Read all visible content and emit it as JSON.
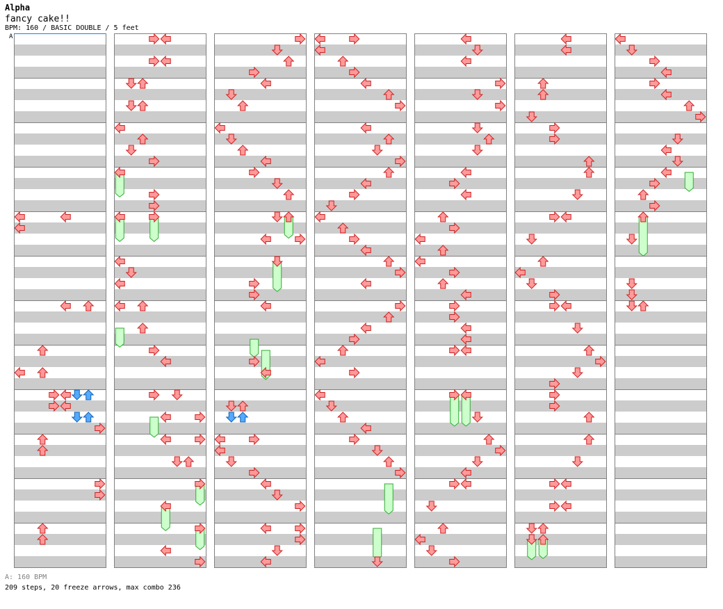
{
  "header": {
    "title": "Alpha",
    "song": "fancy cake!!",
    "info": "BPM: 160 / BASIC DOUBLE / 5 feet",
    "bpm_marker": "A"
  },
  "footer": {
    "bpm_line": "A: 160 BPM",
    "stats": "209 steps, 20 freeze arrows, max combo 236"
  },
  "colors": {
    "note": "#ff9a9a",
    "note_stroke": "#cc2020",
    "note_alt": "#55aaff",
    "note_alt_stroke": "#1060b0",
    "freeze": "#ccffcc",
    "freeze_stroke": "#33aa33",
    "stripe": "#cccccc",
    "border": "#808080"
  },
  "chart_data": {
    "type": "step-chart",
    "style": "double",
    "panels": 7,
    "measures_per_panel": 12,
    "lanes": [
      "P1-left",
      "P1-down",
      "P1-up",
      "P1-right",
      "P2-left",
      "P2-down",
      "P2-up",
      "P2-right"
    ],
    "notes": [
      [
        0,
        4,
        0,
        0
      ],
      [
        0,
        4,
        1,
        0
      ],
      [
        0,
        4,
        0,
        4
      ],
      [
        0,
        6,
        0,
        4
      ],
      [
        0,
        6,
        0,
        6
      ],
      [
        0,
        7,
        2,
        0
      ],
      [
        0,
        7,
        0,
        2
      ],
      [
        0,
        7,
        2,
        2
      ],
      [
        0,
        8,
        0,
        3
      ],
      [
        0,
        8,
        0,
        4
      ],
      [
        0,
        8,
        1,
        3
      ],
      [
        0,
        8,
        1,
        4
      ],
      [
        0,
        8,
        3,
        7
      ],
      [
        0,
        9,
        0,
        2
      ],
      [
        0,
        9,
        1,
        2
      ],
      [
        0,
        10,
        0,
        7
      ],
      [
        0,
        10,
        1,
        7
      ],
      [
        0,
        11,
        0,
        2
      ],
      [
        0,
        11,
        1,
        2
      ],
      [
        1,
        0,
        0,
        3
      ],
      [
        1,
        0,
        0,
        4
      ],
      [
        1,
        0,
        2,
        3
      ],
      [
        1,
        0,
        2,
        4
      ],
      [
        1,
        1,
        0,
        1
      ],
      [
        1,
        1,
        0,
        2
      ],
      [
        1,
        1,
        2,
        1
      ],
      [
        1,
        1,
        2,
        2
      ],
      [
        1,
        2,
        0,
        0
      ],
      [
        1,
        2,
        1,
        2
      ],
      [
        1,
        2,
        2,
        1
      ],
      [
        1,
        2,
        3,
        3
      ],
      [
        1,
        3,
        0,
        0
      ],
      [
        1,
        3,
        2,
        3
      ],
      [
        1,
        3,
        3,
        3
      ],
      [
        1,
        4,
        0,
        0
      ],
      [
        1,
        4,
        0,
        3
      ],
      [
        1,
        5,
        0,
        0
      ],
      [
        1,
        5,
        1,
        1
      ],
      [
        1,
        5,
        2,
        0
      ],
      [
        1,
        6,
        0,
        0
      ],
      [
        1,
        6,
        0,
        2
      ],
      [
        1,
        6,
        2,
        2
      ],
      [
        1,
        7,
        0,
        3
      ],
      [
        1,
        7,
        1,
        4
      ],
      [
        1,
        8,
        0,
        3
      ],
      [
        1,
        8,
        0,
        5
      ],
      [
        1,
        8,
        2,
        4
      ],
      [
        1,
        8,
        2,
        7
      ],
      [
        1,
        9,
        0,
        4
      ],
      [
        1,
        9,
        0,
        7
      ],
      [
        1,
        9,
        2,
        5
      ],
      [
        1,
        9,
        2,
        6
      ],
      [
        1,
        10,
        0,
        7
      ],
      [
        1,
        10,
        2,
        4
      ],
      [
        1,
        11,
        0,
        7
      ],
      [
        1,
        11,
        2,
        4
      ],
      [
        1,
        11,
        3,
        7
      ],
      [
        2,
        0,
        0,
        7
      ],
      [
        2,
        0,
        1,
        5
      ],
      [
        2,
        0,
        2,
        6
      ],
      [
        2,
        0,
        3,
        3
      ],
      [
        2,
        1,
        0,
        4
      ],
      [
        2,
        1,
        1,
        1
      ],
      [
        2,
        1,
        2,
        2
      ],
      [
        2,
        2,
        0,
        0
      ],
      [
        2,
        2,
        1,
        1
      ],
      [
        2,
        2,
        2,
        2
      ],
      [
        2,
        2,
        3,
        4
      ],
      [
        2,
        3,
        0,
        3
      ],
      [
        2,
        3,
        1,
        5
      ],
      [
        2,
        3,
        2,
        6
      ],
      [
        2,
        4,
        0,
        5
      ],
      [
        2,
        4,
        0,
        6
      ],
      [
        2,
        4,
        2,
        4
      ],
      [
        2,
        4,
        2,
        7
      ],
      [
        2,
        5,
        0,
        5
      ],
      [
        2,
        5,
        2,
        3
      ],
      [
        2,
        5,
        3,
        3
      ],
      [
        2,
        6,
        0,
        4
      ],
      [
        2,
        7,
        1,
        3
      ],
      [
        2,
        7,
        2,
        4
      ],
      [
        2,
        8,
        1,
        1
      ],
      [
        2,
        8,
        1,
        2
      ],
      [
        2,
        9,
        0,
        0
      ],
      [
        2,
        9,
        0,
        3
      ],
      [
        2,
        9,
        1,
        0
      ],
      [
        2,
        9,
        2,
        1
      ],
      [
        2,
        9,
        3,
        3
      ],
      [
        2,
        10,
        0,
        4
      ],
      [
        2,
        10,
        1,
        5
      ],
      [
        2,
        10,
        2,
        7
      ],
      [
        2,
        11,
        0,
        4
      ],
      [
        2,
        11,
        0,
        7
      ],
      [
        2,
        11,
        1,
        7
      ],
      [
        2,
        11,
        2,
        5
      ],
      [
        2,
        11,
        3,
        4
      ],
      [
        3,
        0,
        0,
        0
      ],
      [
        3,
        0,
        0,
        3
      ],
      [
        3,
        0,
        1,
        0
      ],
      [
        3,
        0,
        2,
        2
      ],
      [
        3,
        0,
        3,
        3
      ],
      [
        3,
        1,
        0,
        4
      ],
      [
        3,
        1,
        1,
        6
      ],
      [
        3,
        1,
        2,
        7
      ],
      [
        3,
        2,
        0,
        4
      ],
      [
        3,
        2,
        1,
        6
      ],
      [
        3,
        2,
        2,
        5
      ],
      [
        3,
        2,
        3,
        7
      ],
      [
        3,
        3,
        0,
        6
      ],
      [
        3,
        3,
        1,
        4
      ],
      [
        3,
        3,
        2,
        3
      ],
      [
        3,
        3,
        3,
        1
      ],
      [
        3,
        4,
        0,
        0
      ],
      [
        3,
        4,
        1,
        2
      ],
      [
        3,
        4,
        2,
        3
      ],
      [
        3,
        4,
        3,
        4
      ],
      [
        3,
        5,
        0,
        6
      ],
      [
        3,
        5,
        1,
        7
      ],
      [
        3,
        5,
        2,
        4
      ],
      [
        3,
        6,
        0,
        7
      ],
      [
        3,
        6,
        1,
        6
      ],
      [
        3,
        6,
        2,
        4
      ],
      [
        3,
        6,
        3,
        3
      ],
      [
        3,
        7,
        0,
        2
      ],
      [
        3,
        7,
        1,
        0
      ],
      [
        3,
        7,
        2,
        3
      ],
      [
        3,
        8,
        0,
        0
      ],
      [
        3,
        8,
        1,
        1
      ],
      [
        3,
        8,
        2,
        2
      ],
      [
        3,
        8,
        3,
        4
      ],
      [
        3,
        9,
        0,
        3
      ],
      [
        3,
        9,
        1,
        5
      ],
      [
        3,
        9,
        2,
        6
      ],
      [
        3,
        9,
        3,
        7
      ],
      [
        3,
        11,
        3,
        5
      ],
      [
        4,
        0,
        0,
        4
      ],
      [
        4,
        0,
        1,
        5
      ],
      [
        4,
        0,
        2,
        4
      ],
      [
        4,
        1,
        0,
        7
      ],
      [
        4,
        1,
        1,
        5
      ],
      [
        4,
        1,
        2,
        7
      ],
      [
        4,
        2,
        0,
        5
      ],
      [
        4,
        2,
        1,
        6
      ],
      [
        4,
        2,
        2,
        5
      ],
      [
        4,
        3,
        0,
        4
      ],
      [
        4,
        3,
        1,
        3
      ],
      [
        4,
        3,
        2,
        4
      ],
      [
        4,
        4,
        0,
        2
      ],
      [
        4,
        4,
        1,
        3
      ],
      [
        4,
        4,
        2,
        0
      ],
      [
        4,
        4,
        3,
        2
      ],
      [
        4,
        5,
        0,
        0
      ],
      [
        4,
        5,
        1,
        3
      ],
      [
        4,
        5,
        2,
        2
      ],
      [
        4,
        5,
        3,
        4
      ],
      [
        4,
        6,
        0,
        3
      ],
      [
        4,
        6,
        1,
        3
      ],
      [
        4,
        6,
        2,
        4
      ],
      [
        4,
        6,
        3,
        4
      ],
      [
        4,
        7,
        0,
        3
      ],
      [
        4,
        7,
        0,
        4
      ],
      [
        4,
        8,
        0,
        3
      ],
      [
        4,
        8,
        0,
        4
      ],
      [
        4,
        8,
        2,
        5
      ],
      [
        4,
        9,
        0,
        6
      ],
      [
        4,
        9,
        1,
        7
      ],
      [
        4,
        9,
        2,
        5
      ],
      [
        4,
        9,
        3,
        4
      ],
      [
        4,
        10,
        0,
        3
      ],
      [
        4,
        10,
        0,
        4
      ],
      [
        4,
        10,
        2,
        1
      ],
      [
        4,
        11,
        0,
        2
      ],
      [
        4,
        11,
        1,
        0
      ],
      [
        4,
        11,
        2,
        1
      ],
      [
        4,
        11,
        3,
        3
      ],
      [
        5,
        0,
        0,
        4
      ],
      [
        5,
        0,
        1,
        4
      ],
      [
        5,
        1,
        0,
        2
      ],
      [
        5,
        1,
        1,
        2
      ],
      [
        5,
        1,
        3,
        1
      ],
      [
        5,
        2,
        0,
        3
      ],
      [
        5,
        2,
        1,
        3
      ],
      [
        5,
        2,
        3,
        6
      ],
      [
        5,
        3,
        0,
        6
      ],
      [
        5,
        3,
        2,
        5
      ],
      [
        5,
        4,
        0,
        3
      ],
      [
        5,
        4,
        0,
        4
      ],
      [
        5,
        4,
        2,
        1
      ],
      [
        5,
        5,
        0,
        2
      ],
      [
        5,
        5,
        1,
        0
      ],
      [
        5,
        5,
        2,
        1
      ],
      [
        5,
        5,
        3,
        3
      ],
      [
        5,
        6,
        0,
        3
      ],
      [
        5,
        6,
        0,
        4
      ],
      [
        5,
        6,
        2,
        5
      ],
      [
        5,
        7,
        0,
        6
      ],
      [
        5,
        7,
        1,
        7
      ],
      [
        5,
        7,
        2,
        5
      ],
      [
        5,
        7,
        3,
        3
      ],
      [
        5,
        8,
        0,
        3
      ],
      [
        5,
        8,
        1,
        3
      ],
      [
        5,
        8,
        2,
        6
      ],
      [
        5,
        9,
        0,
        6
      ],
      [
        5,
        9,
        2,
        5
      ],
      [
        5,
        10,
        0,
        3
      ],
      [
        5,
        10,
        0,
        4
      ],
      [
        5,
        10,
        2,
        3
      ],
      [
        5,
        10,
        2,
        4
      ],
      [
        5,
        11,
        0,
        1
      ],
      [
        5,
        11,
        0,
        2
      ],
      [
        5,
        11,
        1,
        1
      ],
      [
        5,
        11,
        1,
        2
      ],
      [
        6,
        0,
        0,
        0
      ],
      [
        6,
        0,
        1,
        1
      ],
      [
        6,
        0,
        2,
        3
      ],
      [
        6,
        0,
        3,
        4
      ],
      [
        6,
        1,
        0,
        3
      ],
      [
        6,
        1,
        1,
        4
      ],
      [
        6,
        1,
        2,
        6
      ],
      [
        6,
        1,
        3,
        7
      ],
      [
        6,
        2,
        1,
        5
      ],
      [
        6,
        2,
        2,
        4
      ],
      [
        6,
        2,
        3,
        5
      ],
      [
        6,
        3,
        0,
        4
      ],
      [
        6,
        3,
        1,
        3
      ],
      [
        6,
        3,
        2,
        2
      ],
      [
        6,
        3,
        3,
        3
      ],
      [
        6,
        4,
        0,
        2
      ],
      [
        6,
        4,
        2,
        1
      ],
      [
        6,
        5,
        2,
        1
      ],
      [
        6,
        5,
        3,
        1
      ],
      [
        6,
        6,
        0,
        1
      ],
      [
        6,
        6,
        0,
        2
      ]
    ],
    "freezes": [
      [
        1,
        3,
        0,
        0,
        1.9
      ],
      [
        1,
        4,
        0,
        0,
        1.9
      ],
      [
        1,
        4,
        0,
        3,
        1.9
      ],
      [
        1,
        6,
        2,
        0,
        1.4
      ],
      [
        1,
        8,
        2,
        3,
        1.5
      ],
      [
        1,
        10,
        2,
        4,
        1.9
      ],
      [
        1,
        10,
        0,
        7,
        1.6
      ],
      [
        1,
        11,
        0,
        7,
        1.6
      ],
      [
        2,
        4,
        0,
        6,
        1.6
      ],
      [
        2,
        5,
        0,
        5,
        2.4
      ],
      [
        2,
        6,
        3,
        3,
        1.3
      ],
      [
        2,
        7,
        0,
        4,
        2.3
      ],
      [
        3,
        10,
        0,
        6,
        2.4
      ],
      [
        3,
        11,
        0,
        5,
        2.5
      ],
      [
        4,
        8,
        0,
        3,
        2.5
      ],
      [
        4,
        8,
        0,
        4,
        2.5
      ],
      [
        5,
        11,
        1,
        1,
        1.5
      ],
      [
        5,
        11,
        1,
        2,
        1.4
      ],
      [
        6,
        3,
        0,
        6,
        1.4
      ],
      [
        6,
        4,
        0,
        2,
        3.2
      ]
    ],
    "alt_notes": [
      [
        0,
        8,
        0,
        5
      ],
      [
        0,
        8,
        0,
        6
      ],
      [
        0,
        8,
        2,
        5
      ],
      [
        0,
        8,
        2,
        6
      ],
      [
        2,
        8,
        2,
        1
      ],
      [
        2,
        8,
        2,
        2
      ]
    ]
  }
}
